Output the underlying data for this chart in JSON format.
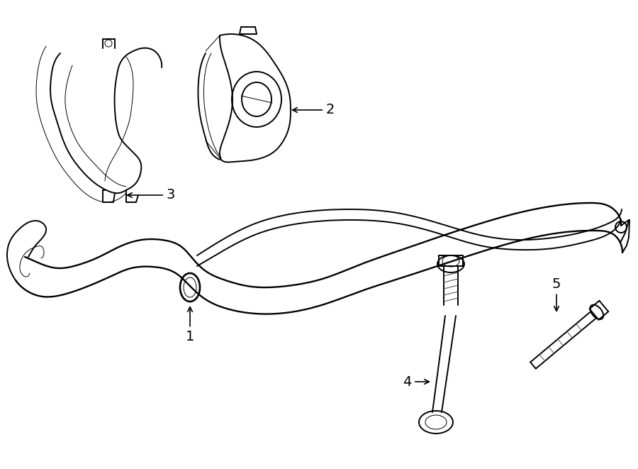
{
  "bg_color": "#ffffff",
  "line_color": "#000000",
  "lw": 1.4,
  "tlw": 0.7,
  "fig_width": 9.0,
  "fig_height": 6.61,
  "dpi": 100
}
